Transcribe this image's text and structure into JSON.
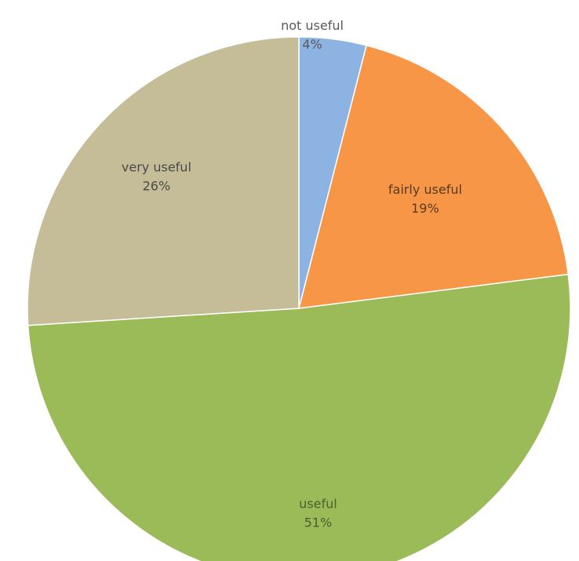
{
  "chart_data": {
    "type": "pie",
    "title": "",
    "slices": [
      {
        "label": "not useful",
        "value": 4,
        "value_label": "4%",
        "color": "#8db3e2",
        "label_color": "#595959"
      },
      {
        "label": "fairly useful",
        "value": 19,
        "value_label": "19%",
        "color": "#f79646",
        "label_color": "#5a3a1e"
      },
      {
        "label": "useful",
        "value": 51,
        "value_label": "51%",
        "color": "#9bbb59",
        "label_color": "#4d5e2c"
      },
      {
        "label": "very useful",
        "value": 26,
        "value_label": "26%",
        "color": "#c4bd97",
        "label_color": "#4a4a4a"
      }
    ],
    "start_angle": "12 o'clock",
    "direction": "clockwise",
    "legend": "none",
    "data_labels": "inside and above slices"
  }
}
